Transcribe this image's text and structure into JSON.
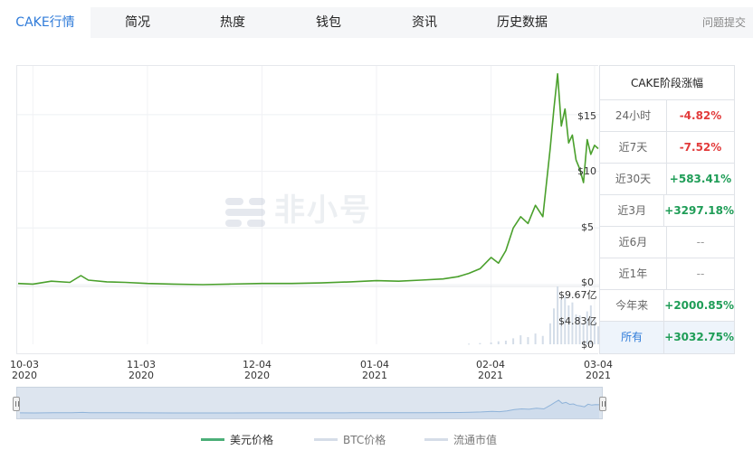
{
  "tabs": [
    {
      "label": "CAKE行情",
      "active": true
    },
    {
      "label": "简况",
      "active": false
    },
    {
      "label": "热度",
      "active": false
    },
    {
      "label": "钱包",
      "active": false
    },
    {
      "label": "资讯",
      "active": false
    },
    {
      "label": "历史数据",
      "active": false
    }
  ],
  "feedback_label": "问题提交",
  "watermark": "非小号",
  "chart_data": {
    "type": "line",
    "price_axis": {
      "ticks": [
        "$15",
        "$10",
        "$5",
        "$0"
      ],
      "ylim": [
        0,
        18.5
      ]
    },
    "volume_axis": {
      "ticks": [
        "$9.67亿",
        "$4.83亿",
        "$0"
      ],
      "ylim": [
        0,
        9.67
      ]
    },
    "x_ticks": [
      {
        "date": "10-03",
        "year": "2020"
      },
      {
        "date": "11-03",
        "year": "2020"
      },
      {
        "date": "12-04",
        "year": "2020"
      },
      {
        "date": "01-04",
        "year": "2021"
      },
      {
        "date": "02-04",
        "year": "2021"
      },
      {
        "date": "03-04",
        "year": "2021"
      }
    ],
    "series": [
      {
        "name": "美元价格",
        "color": "#4aa02c",
        "x": [
          "2020-09-29",
          "2020-10-03",
          "2020-10-08",
          "2020-10-13",
          "2020-10-16",
          "2020-10-18",
          "2020-10-23",
          "2020-10-28",
          "2020-11-03",
          "2020-11-10",
          "2020-11-18",
          "2020-11-25",
          "2020-12-04",
          "2020-12-12",
          "2020-12-20",
          "2020-12-28",
          "2021-01-04",
          "2021-01-10",
          "2021-01-16",
          "2021-01-22",
          "2021-01-26",
          "2021-01-29",
          "2021-02-01",
          "2021-02-04",
          "2021-02-06",
          "2021-02-08",
          "2021-02-10",
          "2021-02-12",
          "2021-02-14",
          "2021-02-16",
          "2021-02-18",
          "2021-02-20",
          "2021-02-21",
          "2021-02-22",
          "2021-02-23",
          "2021-02-24",
          "2021-02-25",
          "2021-02-26",
          "2021-02-27",
          "2021-02-28",
          "2021-03-01",
          "2021-03-02",
          "2021-03-03",
          "2021-03-04",
          "2021-03-05"
        ],
        "values": [
          0.1,
          0.05,
          0.3,
          0.2,
          0.8,
          0.4,
          0.25,
          0.2,
          0.1,
          0.05,
          0.0,
          0.05,
          0.1,
          0.1,
          0.15,
          0.25,
          0.35,
          0.3,
          0.4,
          0.5,
          0.7,
          1.0,
          1.4,
          2.4,
          1.9,
          3.0,
          5.0,
          6.0,
          5.4,
          7.0,
          6.0,
          12.0,
          15.5,
          18.6,
          14.0,
          15.5,
          12.5,
          13.2,
          11.0,
          10.2,
          9.0,
          12.8,
          11.5,
          12.3,
          12.0
        ]
      },
      {
        "name": "BTC价格",
        "color": "#c9d6e4"
      },
      {
        "name": "流通市值",
        "color": "#d4dde8",
        "x": [
          "2021-01-29",
          "2021-02-01",
          "2021-02-04",
          "2021-02-06",
          "2021-02-08",
          "2021-02-10",
          "2021-02-12",
          "2021-02-14",
          "2021-02-16",
          "2021-02-18",
          "2021-02-20",
          "2021-02-21",
          "2021-02-22",
          "2021-02-23",
          "2021-02-24",
          "2021-02-25",
          "2021-02-26",
          "2021-02-27",
          "2021-02-28",
          "2021-03-01",
          "2021-03-02",
          "2021-03-03",
          "2021-03-04",
          "2021-03-05"
        ],
        "values": [
          0.1,
          0.2,
          0.3,
          0.5,
          0.6,
          1.0,
          1.5,
          1.2,
          1.8,
          1.4,
          3.5,
          6.0,
          9.67,
          7.5,
          8.0,
          6.5,
          7.0,
          5.0,
          4.83,
          3.5,
          5.5,
          6.5,
          4.0,
          3.0
        ]
      }
    ]
  },
  "legend": [
    {
      "label": "美元价格",
      "color": "#4caf78",
      "active": true
    },
    {
      "label": "BTC价格",
      "color": "#d5dde8",
      "active": false
    },
    {
      "label": "流通市值",
      "color": "#d5dde8",
      "active": false
    }
  ],
  "performance": {
    "title": "CAKE阶段涨幅",
    "rows": [
      {
        "label": "24小时",
        "value": "-4.82%",
        "trend": "neg"
      },
      {
        "label": "近7天",
        "value": "-7.52%",
        "trend": "neg"
      },
      {
        "label": "近30天",
        "value": "+583.41%",
        "trend": "pos"
      },
      {
        "label": "近3月",
        "value": "+3297.18%",
        "trend": "pos"
      },
      {
        "label": "近6月",
        "value": "--",
        "trend": "na"
      },
      {
        "label": "近1年",
        "value": "--",
        "trend": "na"
      },
      {
        "label": "今年来",
        "value": "+2000.85%",
        "trend": "pos"
      },
      {
        "label": "所有",
        "value": "+3032.75%",
        "trend": "pos",
        "selected": true
      }
    ]
  }
}
